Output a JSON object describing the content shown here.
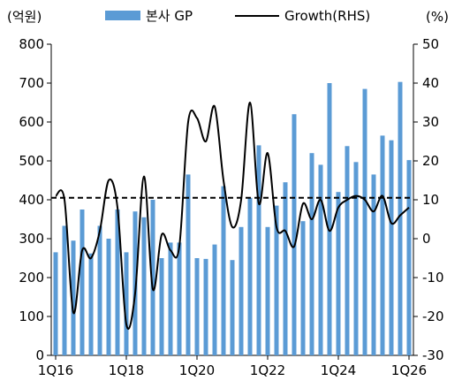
{
  "chart_data": {
    "type": "bar+line",
    "unit_left": "(억원)",
    "unit_right": "(%)",
    "y_left_range": [
      0,
      800
    ],
    "y_right_range": [
      -30,
      50
    ],
    "y_left_ticks": [
      "0",
      "100",
      "200",
      "300",
      "400",
      "500",
      "600",
      "700",
      "800"
    ],
    "y_right_ticks": [
      "-30",
      "-20",
      "-10",
      "0",
      "10",
      "20",
      "30",
      "40",
      "50"
    ],
    "x_tick_labels": [
      "1Q16",
      "1Q18",
      "1Q20",
      "1Q22",
      "1Q24",
      "1Q26"
    ],
    "legend_position": "top",
    "bar_color": "#5b9bd5",
    "line_color": "#000000",
    "reference_line": {
      "axis": "right",
      "value": 10.5,
      "style": "dashed"
    },
    "categories": [
      "1Q16",
      "2Q16",
      "3Q16",
      "4Q16",
      "1Q17",
      "2Q17",
      "3Q17",
      "4Q17",
      "1Q18",
      "2Q18",
      "3Q18",
      "4Q18",
      "1Q19",
      "2Q19",
      "3Q19",
      "4Q19",
      "1Q20",
      "2Q20",
      "3Q20",
      "4Q20",
      "1Q21",
      "2Q21",
      "3Q21",
      "4Q21",
      "1Q22",
      "2Q22",
      "3Q22",
      "4Q22",
      "1Q23",
      "2Q23",
      "3Q23",
      "4Q23",
      "1Q24",
      "2Q24",
      "3Q24",
      "4Q24",
      "1Q25",
      "2Q25",
      "3Q25",
      "4Q25",
      "1Q26"
    ],
    "series": [
      {
        "name": "본사 GP",
        "axis": "left",
        "kind": "bar",
        "values": [
          265,
          333,
          295,
          375,
          262,
          333,
          300,
          375,
          265,
          370,
          355,
          400,
          250,
          290,
          290,
          465,
          250,
          248,
          285,
          435,
          245,
          330,
          405,
          540,
          330,
          385,
          445,
          620,
          345,
          520,
          490,
          700,
          420,
          538,
          497,
          685,
          465,
          565,
          553,
          703,
          502
        ]
      },
      {
        "name": "Growth(RHS)",
        "axis": "right",
        "kind": "line",
        "values": [
          11,
          10,
          -19,
          -3,
          -5,
          2,
          15,
          8,
          -22,
          -14,
          16,
          -13,
          1,
          -3,
          -2,
          30,
          31,
          25,
          34,
          15,
          3,
          10,
          35,
          9,
          22,
          3,
          2,
          -2,
          9,
          5,
          10,
          2,
          8,
          10,
          11,
          10,
          7,
          11,
          4,
          6,
          8
        ]
      }
    ]
  }
}
